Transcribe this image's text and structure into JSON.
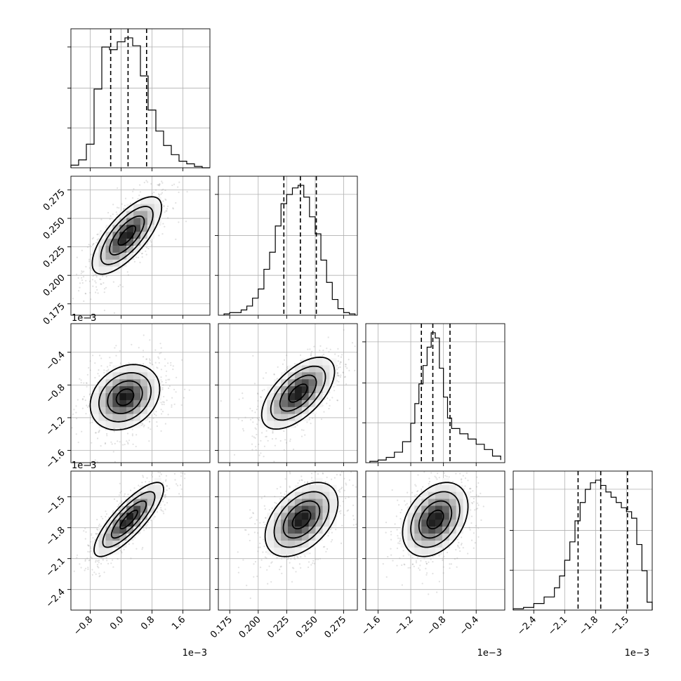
{
  "chart_data": {
    "type": "corner",
    "parameters": [
      {
        "range": [
          -1.3,
          2.3
        ],
        "ticks": [
          -0.8,
          0.0,
          0.8,
          1.6
        ],
        "tick_labels": [
          "−0.8",
          "0.0",
          "0.8",
          "1.6"
        ],
        "offset_label": "1e−3",
        "hist_edges": [
          -1.3,
          -1.1,
          -0.9,
          -0.7,
          -0.5,
          -0.3,
          -0.1,
          0.1,
          0.3,
          0.5,
          0.7,
          0.9,
          1.1,
          1.3,
          1.5,
          1.7,
          1.9,
          2.1,
          2.3
        ],
        "hist_counts": [
          2,
          6,
          18,
          60,
          92,
          90,
          96,
          99,
          93,
          70,
          44,
          28,
          17,
          10,
          5,
          3,
          1,
          0
        ],
        "quantiles": [
          -0.27,
          0.18,
          0.66
        ]
      },
      {
        "range": [
          0.165,
          0.287
        ],
        "ticks": [
          0.175,
          0.2,
          0.225,
          0.25,
          0.275
        ],
        "tick_labels": [
          "0.175",
          "0.200",
          "0.225",
          "0.250",
          "0.275"
        ],
        "offset_label": "",
        "hist_edges": [
          0.17,
          0.175,
          0.18,
          0.185,
          0.19,
          0.195,
          0.2,
          0.205,
          0.21,
          0.215,
          0.22,
          0.225,
          0.23,
          0.235,
          0.24,
          0.245,
          0.25,
          0.255,
          0.26,
          0.265,
          0.27,
          0.275,
          0.28,
          0.285
        ],
        "hist_counts": [
          1,
          2,
          2,
          4,
          7,
          13,
          20,
          35,
          48,
          68,
          85,
          92,
          97,
          99,
          90,
          75,
          62,
          42,
          25,
          12,
          5,
          2,
          1
        ],
        "quantiles": [
          0.2225,
          0.237,
          0.251
        ]
      },
      {
        "range": [
          -1.75,
          -0.05
        ],
        "ticks": [
          -1.6,
          -1.2,
          -0.8,
          -0.4
        ],
        "tick_labels": [
          "−1.6",
          "−1.2",
          "−0.8",
          "−0.4"
        ],
        "offset_label": "1e−3",
        "hist_edges": [
          -1.7,
          -1.6,
          -1.5,
          -1.4,
          -1.3,
          -1.2,
          -1.15,
          -1.1,
          -1.05,
          -1.0,
          -0.95,
          -0.9,
          -0.85,
          -0.8,
          -0.75,
          -0.7,
          -0.6,
          -0.5,
          -0.4,
          -0.3,
          -0.2,
          -0.1
        ],
        "hist_counts": [
          1,
          2,
          4,
          8,
          16,
          30,
          45,
          60,
          74,
          88,
          99,
          95,
          72,
          50,
          34,
          26,
          22,
          18,
          14,
          10,
          5,
          2
        ],
        "quantiles": [
          -1.07,
          -0.93,
          -0.72
        ]
      },
      {
        "range": [
          -2.6,
          -1.25
        ],
        "ticks": [
          -2.4,
          -2.1,
          -1.8,
          -1.5
        ],
        "tick_labels": [
          "−2.4",
          "−2.1",
          "−1.8",
          "−1.5"
        ],
        "offset_label": "1e−3",
        "hist_edges": [
          -2.6,
          -2.5,
          -2.4,
          -2.3,
          -2.2,
          -2.15,
          -2.1,
          -2.05,
          -2.0,
          -1.95,
          -1.9,
          -1.85,
          -1.8,
          -1.75,
          -1.7,
          -1.65,
          -1.6,
          -1.55,
          -1.5,
          -1.45,
          -1.4,
          -1.35,
          -1.3,
          -1.25
        ],
        "hist_counts": [
          1,
          2,
          5,
          10,
          17,
          26,
          38,
          52,
          68,
          82,
          92,
          97,
          99,
          95,
          90,
          86,
          82,
          78,
          75,
          70,
          50,
          30,
          6
        ],
        "quantiles": [
          -1.97,
          -1.75,
          -1.49
        ]
      }
    ],
    "pairs": [
      {
        "row": 1,
        "col": 0,
        "mean": [
          0.15,
          0.235
        ],
        "sd": [
          0.45,
          0.017
        ],
        "corr": 0.72
      },
      {
        "row": 2,
        "col": 0,
        "mean": [
          0.1,
          -0.95
        ],
        "sd": [
          0.45,
          0.2
        ],
        "corr": 0.25
      },
      {
        "row": 2,
        "col": 1,
        "mean": [
          0.235,
          -0.9
        ],
        "sd": [
          0.016,
          0.22
        ],
        "corr": 0.6
      },
      {
        "row": 3,
        "col": 0,
        "mean": [
          0.2,
          -1.72
        ],
        "sd": [
          0.45,
          0.18
        ],
        "corr": 0.82
      },
      {
        "row": 3,
        "col": 1,
        "mean": [
          0.238,
          -1.72
        ],
        "sd": [
          0.016,
          0.18
        ],
        "corr": 0.45
      },
      {
        "row": 3,
        "col": 2,
        "mean": [
          -0.9,
          -1.72
        ],
        "sd": [
          0.2,
          0.18
        ],
        "corr": 0.35
      }
    ],
    "contour_levels": [
      0.5,
      1.0,
      1.5,
      2.0
    ],
    "grid": true
  }
}
